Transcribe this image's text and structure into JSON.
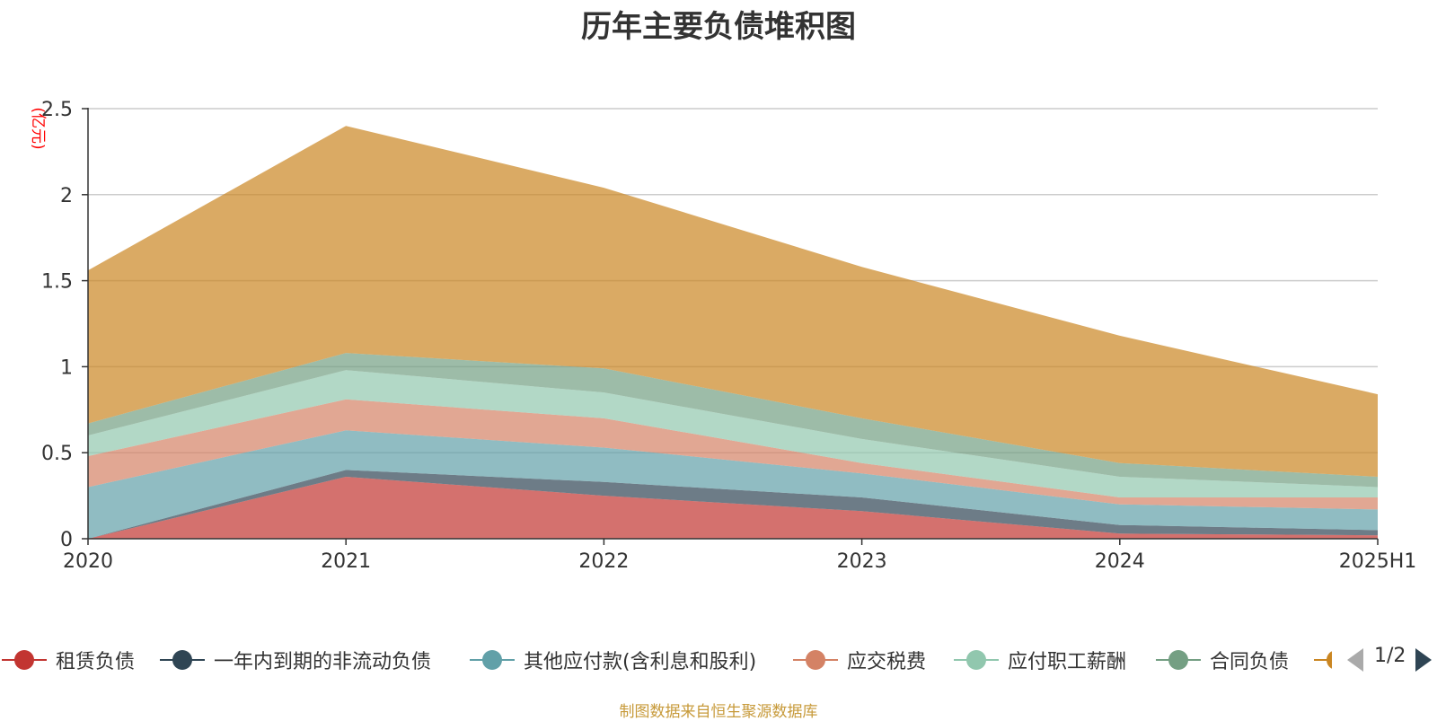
{
  "chart_data": {
    "type": "area",
    "stacked": true,
    "title": "历年主要负债堆积图",
    "ylabel": "(亿元)",
    "categories": [
      "2020",
      "2021",
      "2022",
      "2023",
      "2024",
      "2025H1"
    ],
    "ylim": [
      0,
      2.5
    ],
    "yticks": [
      "0",
      "0.5",
      "1",
      "1.5",
      "2",
      "2.5"
    ],
    "grid": true,
    "legend_position": "bottom",
    "legend_page": "1/2",
    "series": [
      {
        "name": "租赁负债",
        "color": "#c23531",
        "values": [
          0.0,
          0.36,
          0.25,
          0.16,
          0.03,
          0.02
        ]
      },
      {
        "name": "一年内到期的非流动负债",
        "color": "#2f4554",
        "values": [
          0.0,
          0.04,
          0.08,
          0.08,
          0.05,
          0.03
        ]
      },
      {
        "name": "其他应付款(含利息和股利)",
        "color": "#61a0a8",
        "values": [
          0.3,
          0.23,
          0.2,
          0.14,
          0.12,
          0.12
        ]
      },
      {
        "name": "应交税费",
        "color": "#d48265",
        "values": [
          0.18,
          0.18,
          0.17,
          0.06,
          0.04,
          0.07
        ]
      },
      {
        "name": "应付职工薪酬",
        "color": "#91c7ae",
        "values": [
          0.12,
          0.17,
          0.15,
          0.14,
          0.12,
          0.06
        ]
      },
      {
        "name": "合同负债",
        "color": "#749f83",
        "values": [
          0.07,
          0.1,
          0.14,
          0.12,
          0.08,
          0.06
        ]
      },
      {
        "name": "",
        "color": "#ca8622",
        "values": [
          0.89,
          1.32,
          1.05,
          0.88,
          0.74,
          0.48
        ]
      }
    ]
  },
  "footer": {
    "source": "制图数据来自恒生聚源数据库"
  }
}
